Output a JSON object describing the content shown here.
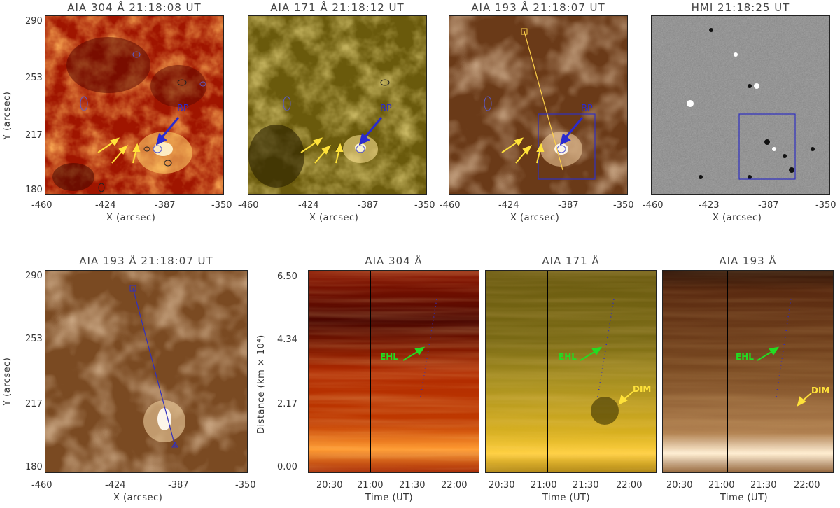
{
  "top_row": {
    "panels": [
      {
        "title": "AIA 304 Å 21:18:08 UT",
        "bp_label": "BP"
      },
      {
        "title": "AIA 171 Å 21:18:12 UT",
        "bp_label": "BP"
      },
      {
        "title": "AIA 193 Å 21:18:07 UT",
        "bp_label": "BP"
      },
      {
        "title": "HMI 21:18:25 UT"
      }
    ],
    "y_ticks": [
      "290",
      "253",
      "217",
      "180"
    ],
    "x_ticks": [
      "-460",
      "-424",
      "-387",
      "-350"
    ],
    "hmi_x_ticks": [
      "-460",
      "-423",
      "-387",
      "-350"
    ],
    "x_label": "X (arcsec)",
    "y_label": "Y (arcsec)"
  },
  "bottom_row": {
    "image_panel": {
      "title": "AIA 193 Å 21:18:07 UT",
      "y_ticks": [
        "290",
        "253",
        "217",
        "180"
      ],
      "x_ticks": [
        "-460",
        "-424",
        "-387",
        "-350"
      ],
      "x_label": "X (arcsec)",
      "y_label": "Y (arcsec)"
    },
    "time_distance": {
      "titles": [
        "AIA 304 Å",
        "AIA 171 Å",
        "AIA 193 Å"
      ],
      "y_ticks": [
        "6.50",
        "4.34",
        "2.17",
        "0.00"
      ],
      "y_label": "Distance (km × 10⁴)",
      "x_ticks": [
        "20:30",
        "21:00",
        "21:30",
        "22:00"
      ],
      "x_label": "Time (UT)",
      "ehl_label": "EHL",
      "dim_label": "DIM"
    }
  },
  "colors": {
    "aia304": "#b22000",
    "aia171": "#8a7a10",
    "aia193": "#7a4a20",
    "hmi": "#8a8a8a",
    "blue_annot": "#2a2ad0",
    "yellow_annot": "#ffe23a",
    "green_annot": "#22dd22"
  }
}
